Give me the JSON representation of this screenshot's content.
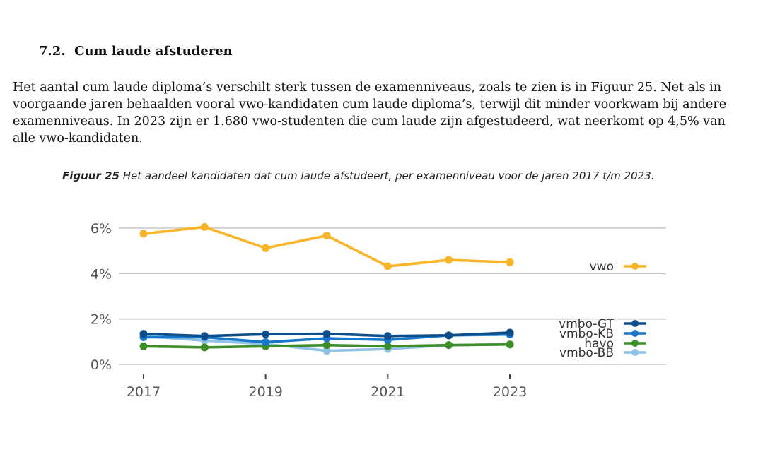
{
  "section": {
    "number": "7.2.",
    "title": "Cum laude afstuderen"
  },
  "paragraph": "Het aantal cum laude diploma’s verschilt sterk tussen de examenniveaus, zoals te zien is in Figuur 25. Net als in voorgaande jaren behaalden vooral vwo-kandidaten cum laude diploma’s, terwijl dit minder voorkwam bij andere examenniveaus. In 2023 zijn er 1.680 vwo-studenten die cum laude zijn afgestudeerd, wat neerkomt op 4,5% van alle vwo-kandidaten.",
  "caption": {
    "label": "Figuur 25",
    "text": "Het aandeel kandidaten dat cum laude afstudeert, per examenniveau voor de jaren 2017 t/m 2023."
  },
  "chart_data": {
    "type": "line",
    "x": [
      2017,
      2018,
      2019,
      2020,
      2021,
      2022,
      2023
    ],
    "x_tick_labels": [
      "2017",
      "2019",
      "2021",
      "2023"
    ],
    "y_tick_labels": [
      "0%",
      "2%",
      "4%",
      "6%"
    ],
    "y_ticks": [
      0,
      2,
      4,
      6
    ],
    "ylim": [
      0,
      6.3
    ],
    "grid": true,
    "legend": "right",
    "series": [
      {
        "name": "vwo",
        "color": "#F9B428",
        "values": [
          5.75,
          6.05,
          5.12,
          5.67,
          4.32,
          4.6,
          4.5
        ]
      },
      {
        "name": "vmbo-GT",
        "color": "#0D4E8A",
        "values": [
          1.35,
          1.25,
          1.33,
          1.35,
          1.25,
          1.28,
          1.4
        ]
      },
      {
        "name": "vmbo-KB",
        "color": "#1877C9",
        "values": [
          1.2,
          1.2,
          0.98,
          1.15,
          1.08,
          1.28,
          1.32
        ]
      },
      {
        "name": "havo",
        "color": "#3B8F26",
        "values": [
          0.8,
          0.75,
          0.8,
          0.85,
          0.8,
          0.85,
          0.88
        ]
      },
      {
        "name": "vmbo-BB",
        "color": "#8EC3E6",
        "values": [
          1.25,
          1.05,
          0.9,
          0.6,
          0.68,
          0.85,
          0.88
        ]
      }
    ]
  }
}
